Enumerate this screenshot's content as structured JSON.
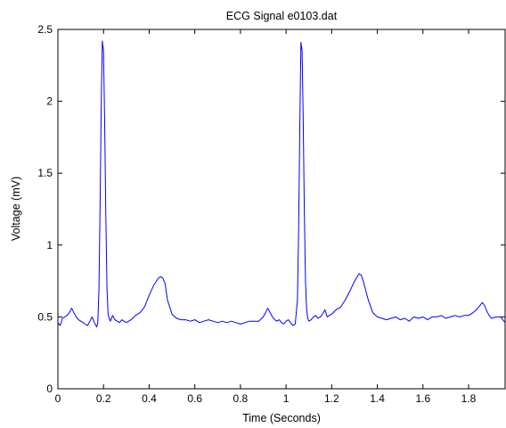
{
  "chart_data": {
    "type": "line",
    "title": "ECG Signal e0103.dat",
    "xlabel": "Time (Seconds)",
    "ylabel": "Voltage (mV)",
    "xlim": [
      0,
      1.96
    ],
    "ylim": [
      0,
      2.5
    ],
    "xticks": [
      0,
      0.2,
      0.4,
      0.6,
      0.8,
      1,
      1.2,
      1.4,
      1.6,
      1.8
    ],
    "xtick_labels": [
      "0",
      "0.2",
      "0.4",
      "0.6",
      "0.8",
      "1",
      "1.2",
      "1.4",
      "1.6",
      "1.8"
    ],
    "yticks": [
      0,
      0.5,
      1,
      1.5,
      2,
      2.5
    ],
    "ytick_labels": [
      "0",
      "0.5",
      "1",
      "1.5",
      "2",
      "2.5"
    ],
    "grid": false,
    "line_color": "#0000ff",
    "series": [
      {
        "x": [
          0,
          0.01,
          0.02,
          0.03,
          0.04,
          0.05,
          0.06,
          0.07,
          0.08,
          0.09,
          0.1,
          0.11,
          0.12,
          0.13,
          0.14,
          0.15,
          0.16,
          0.17,
          0.175,
          0.18,
          0.185,
          0.19,
          0.195,
          0.2,
          0.205,
          0.21,
          0.215,
          0.22,
          0.225,
          0.23,
          0.24,
          0.25,
          0.26,
          0.27,
          0.28,
          0.29,
          0.3,
          0.32,
          0.34,
          0.36,
          0.38,
          0.4,
          0.42,
          0.44,
          0.45,
          0.46,
          0.47,
          0.48,
          0.5,
          0.52,
          0.54,
          0.56,
          0.58,
          0.6,
          0.62,
          0.64,
          0.66,
          0.68,
          0.7,
          0.72,
          0.74,
          0.76,
          0.78,
          0.8,
          0.82,
          0.84,
          0.86,
          0.88,
          0.9,
          0.91,
          0.92,
          0.93,
          0.94,
          0.95,
          0.96,
          0.97,
          0.98,
          0.99,
          1.0,
          1.01,
          1.02,
          1.03,
          1.04,
          1.05,
          1.055,
          1.06,
          1.065,
          1.07,
          1.075,
          1.08,
          1.085,
          1.09,
          1.095,
          1.1,
          1.11,
          1.12,
          1.13,
          1.14,
          1.15,
          1.16,
          1.17,
          1.18,
          1.2,
          1.22,
          1.24,
          1.26,
          1.28,
          1.3,
          1.32,
          1.33,
          1.34,
          1.36,
          1.38,
          1.4,
          1.42,
          1.44,
          1.46,
          1.48,
          1.5,
          1.52,
          1.54,
          1.56,
          1.58,
          1.6,
          1.62,
          1.64,
          1.66,
          1.68,
          1.7,
          1.72,
          1.74,
          1.76,
          1.78,
          1.8,
          1.82,
          1.84,
          1.86,
          1.87,
          1.88,
          1.89,
          1.9,
          1.92,
          1.94,
          1.96
        ],
        "y": [
          0.46,
          0.44,
          0.49,
          0.5,
          0.51,
          0.53,
          0.56,
          0.53,
          0.5,
          0.48,
          0.47,
          0.46,
          0.45,
          0.44,
          0.47,
          0.5,
          0.46,
          0.43,
          0.46,
          0.7,
          1.3,
          2.0,
          2.42,
          2.35,
          1.85,
          1.2,
          0.7,
          0.52,
          0.49,
          0.47,
          0.51,
          0.48,
          0.47,
          0.46,
          0.48,
          0.47,
          0.46,
          0.48,
          0.51,
          0.53,
          0.57,
          0.65,
          0.72,
          0.77,
          0.78,
          0.77,
          0.73,
          0.62,
          0.52,
          0.49,
          0.48,
          0.48,
          0.47,
          0.48,
          0.46,
          0.47,
          0.48,
          0.47,
          0.46,
          0.47,
          0.46,
          0.47,
          0.46,
          0.45,
          0.46,
          0.47,
          0.47,
          0.47,
          0.5,
          0.53,
          0.56,
          0.53,
          0.5,
          0.48,
          0.47,
          0.48,
          0.46,
          0.45,
          0.47,
          0.48,
          0.46,
          0.44,
          0.45,
          0.62,
          1.1,
          1.8,
          2.41,
          2.35,
          1.9,
          1.25,
          0.75,
          0.55,
          0.49,
          0.47,
          0.48,
          0.5,
          0.51,
          0.49,
          0.5,
          0.52,
          0.55,
          0.5,
          0.52,
          0.55,
          0.57,
          0.62,
          0.68,
          0.75,
          0.8,
          0.79,
          0.74,
          0.62,
          0.53,
          0.5,
          0.49,
          0.48,
          0.49,
          0.5,
          0.48,
          0.49,
          0.47,
          0.5,
          0.49,
          0.5,
          0.48,
          0.5,
          0.5,
          0.51,
          0.49,
          0.5,
          0.51,
          0.5,
          0.51,
          0.51,
          0.53,
          0.56,
          0.6,
          0.58,
          0.54,
          0.51,
          0.49,
          0.5,
          0.5,
          0.46
        ]
      }
    ]
  }
}
